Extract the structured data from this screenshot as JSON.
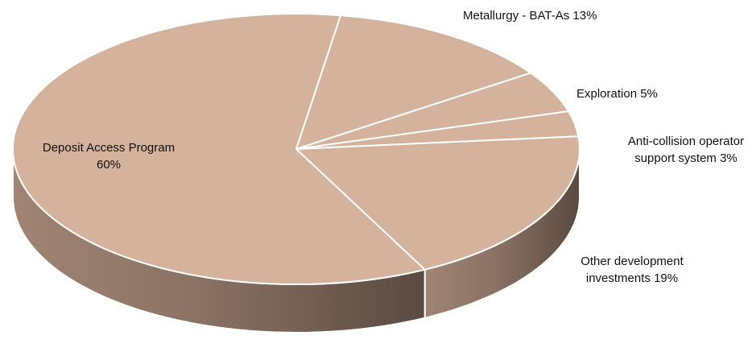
{
  "chart_data": {
    "type": "pie",
    "style": "3d",
    "title": "",
    "categories": [
      "Deposit Access Program",
      "Metallurgy - BAT-As",
      "Exploration",
      "Anti-collision operator support system",
      "Other development investments"
    ],
    "values": [
      60,
      13,
      5,
      3,
      19
    ],
    "unit": "%",
    "labels": [
      [
        "Deposit Access Program",
        "60%"
      ],
      [
        "Metallurgy - BAT-As 13%"
      ],
      [
        "Exploration 5%"
      ],
      [
        "Anti-collision operator",
        "support system 3%"
      ],
      [
        "Other development",
        "investments 19%"
      ]
    ],
    "colors": {
      "top": "#d4b29c",
      "side_dark": "#5a4a40",
      "side_light": "#a08474",
      "separator": "#ffffff"
    }
  }
}
